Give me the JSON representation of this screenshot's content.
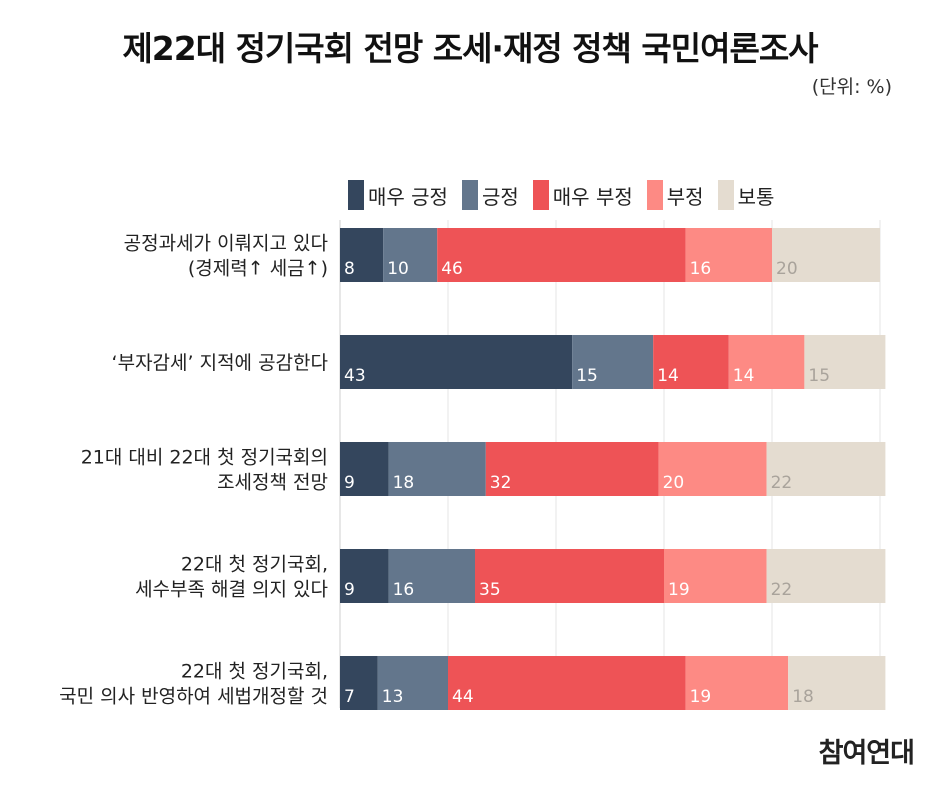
{
  "header": {
    "title": "제22대 정기국회 전망 조세·재정 정책 국민여론조사",
    "unit": "(단위: %)"
  },
  "colors": {
    "very_positive": "#34465d",
    "positive": "#63768c",
    "very_negative": "#ee5356",
    "negative": "#fd8a84",
    "neutral": "#e4dcd0"
  },
  "chart_data": {
    "type": "bar",
    "orientation": "horizontal",
    "stacked": true,
    "unit": "%",
    "xlim": [
      0,
      100
    ],
    "grid": true,
    "legend_position": "top",
    "categories": [
      [
        "공정과세가 이뤄지고 있다",
        "(경제력↑ 세금↑)"
      ],
      [
        "‘부자감세’ 지적에 공감한다"
      ],
      [
        "21대 대비 22대 첫 정기국회의",
        "조세정책 전망"
      ],
      [
        "22대 첫 정기국회,",
        "세수부족 해결 의지 있다"
      ],
      [
        "22대 첫 정기국회,",
        "국민 의사 반영하여 세법개정할 것"
      ]
    ],
    "series": [
      {
        "name": "매우 긍정",
        "color": "#34465d",
        "label_color": "#ffffff",
        "values": [
          8,
          43,
          9,
          9,
          7
        ]
      },
      {
        "name": "긍정",
        "color": "#63768c",
        "label_color": "#ffffff",
        "values": [
          10,
          15,
          18,
          16,
          13
        ]
      },
      {
        "name": "매우 부정",
        "color": "#ee5356",
        "label_color": "#ffffff",
        "values": [
          46,
          14,
          32,
          35,
          44
        ]
      },
      {
        "name": "부정",
        "color": "#fd8a84",
        "label_color": "#ffffff",
        "values": [
          16,
          14,
          20,
          19,
          19
        ]
      },
      {
        "name": "보통",
        "color": "#e4dcd0",
        "label_color": "#a9a39b",
        "values": [
          20,
          15,
          22,
          22,
          18
        ]
      }
    ]
  },
  "footer": {
    "credit": "참여연대"
  }
}
